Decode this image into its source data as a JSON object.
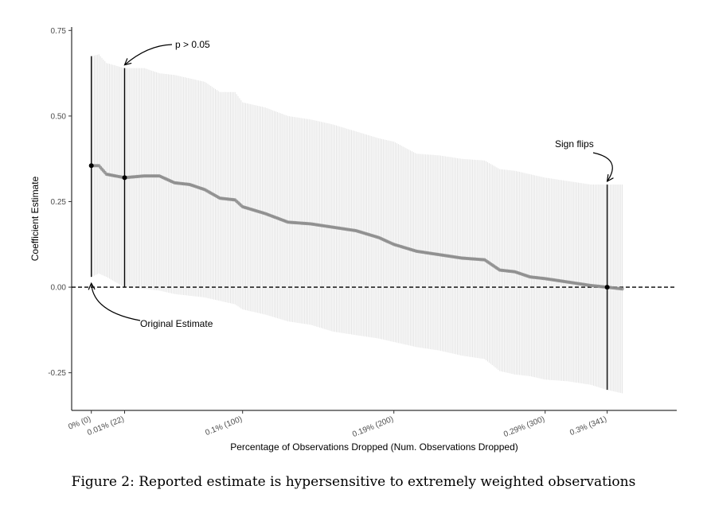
{
  "caption": "Figure 2: Reported estimate is hypersensitive to extremely weighted observations",
  "chart_data": {
    "type": "scatter",
    "title": "",
    "xlabel": "Percentage of Observations Dropped (Num. Observations Dropped)",
    "ylabel": "Coefficient Estimate",
    "xlim": [
      -13,
      387
    ],
    "ylim": [
      -0.36,
      0.76
    ],
    "y_ticks": [
      {
        "value": 0.75,
        "label": "0.75"
      },
      {
        "value": 0.5,
        "label": "0.50"
      },
      {
        "value": 0.25,
        "label": "0.25"
      },
      {
        "value": 0.0,
        "label": "0.00"
      },
      {
        "value": -0.25,
        "label": "-0.25"
      }
    ],
    "x_ticks": [
      {
        "value": 0,
        "label": "0% (0)"
      },
      {
        "value": 22,
        "label": "0.01% (22)"
      },
      {
        "value": 100,
        "label": "0.1% (100)"
      },
      {
        "value": 200,
        "label": "0.19% (200)"
      },
      {
        "value": 300,
        "label": "0.29% (300)"
      },
      {
        "value": 341,
        "label": "0.3% (341)"
      }
    ],
    "grid": false,
    "reference_line": {
      "y": 0,
      "style": "dashed"
    },
    "estimate_profile": [
      {
        "x": 0,
        "y": 0.355,
        "lower": 0.03,
        "upper": 0.675
      },
      {
        "x": 5,
        "y": 0.355,
        "lower": 0.04,
        "upper": 0.68
      },
      {
        "x": 10,
        "y": 0.33,
        "lower": 0.03,
        "upper": 0.655
      },
      {
        "x": 22,
        "y": 0.32,
        "lower": 0.0,
        "upper": 0.64
      },
      {
        "x": 35,
        "y": 0.325,
        "lower": -0.005,
        "upper": 0.64
      },
      {
        "x": 45,
        "y": 0.325,
        "lower": -0.01,
        "upper": 0.625
      },
      {
        "x": 55,
        "y": 0.305,
        "lower": -0.02,
        "upper": 0.62
      },
      {
        "x": 65,
        "y": 0.3,
        "lower": -0.025,
        "upper": 0.61
      },
      {
        "x": 75,
        "y": 0.285,
        "lower": -0.03,
        "upper": 0.6
      },
      {
        "x": 85,
        "y": 0.26,
        "lower": -0.04,
        "upper": 0.57
      },
      {
        "x": 95,
        "y": 0.255,
        "lower": -0.05,
        "upper": 0.57
      },
      {
        "x": 100,
        "y": 0.235,
        "lower": -0.065,
        "upper": 0.54
      },
      {
        "x": 115,
        "y": 0.215,
        "lower": -0.08,
        "upper": 0.525
      },
      {
        "x": 130,
        "y": 0.19,
        "lower": -0.1,
        "upper": 0.5
      },
      {
        "x": 145,
        "y": 0.185,
        "lower": -0.11,
        "upper": 0.49
      },
      {
        "x": 160,
        "y": 0.175,
        "lower": -0.13,
        "upper": 0.475
      },
      {
        "x": 175,
        "y": 0.165,
        "lower": -0.14,
        "upper": 0.455
      },
      {
        "x": 190,
        "y": 0.145,
        "lower": -0.15,
        "upper": 0.435
      },
      {
        "x": 200,
        "y": 0.125,
        "lower": -0.16,
        "upper": 0.425
      },
      {
        "x": 215,
        "y": 0.105,
        "lower": -0.175,
        "upper": 0.39
      },
      {
        "x": 230,
        "y": 0.095,
        "lower": -0.185,
        "upper": 0.385
      },
      {
        "x": 245,
        "y": 0.085,
        "lower": -0.2,
        "upper": 0.375
      },
      {
        "x": 260,
        "y": 0.08,
        "lower": -0.21,
        "upper": 0.37
      },
      {
        "x": 270,
        "y": 0.05,
        "lower": -0.245,
        "upper": 0.345
      },
      {
        "x": 280,
        "y": 0.045,
        "lower": -0.255,
        "upper": 0.34
      },
      {
        "x": 290,
        "y": 0.03,
        "lower": -0.26,
        "upper": 0.33
      },
      {
        "x": 300,
        "y": 0.025,
        "lower": -0.27,
        "upper": 0.32
      },
      {
        "x": 315,
        "y": 0.015,
        "lower": -0.275,
        "upper": 0.31
      },
      {
        "x": 330,
        "y": 0.005,
        "lower": -0.285,
        "upper": 0.3
      },
      {
        "x": 341,
        "y": 0.0,
        "lower": -0.3,
        "upper": 0.3
      },
      {
        "x": 351,
        "y": -0.005,
        "lower": -0.31,
        "upper": 0.3
      }
    ],
    "highlighted_points": [
      {
        "x": 0,
        "y": 0.355,
        "lower": 0.03,
        "upper": 0.675
      },
      {
        "x": 22,
        "y": 0.32,
        "lower": 0.0,
        "upper": 0.64
      },
      {
        "x": 341,
        "y": 0.0,
        "lower": -0.3,
        "upper": 0.3
      }
    ],
    "annotations": [
      {
        "text": "Original Estimate",
        "x": 0,
        "y": 0.03
      },
      {
        "text": "p > 0.05",
        "x": 22,
        "y": 0.64
      },
      {
        "text": "Sign flips",
        "x": 341,
        "y": 0.3
      }
    ]
  }
}
